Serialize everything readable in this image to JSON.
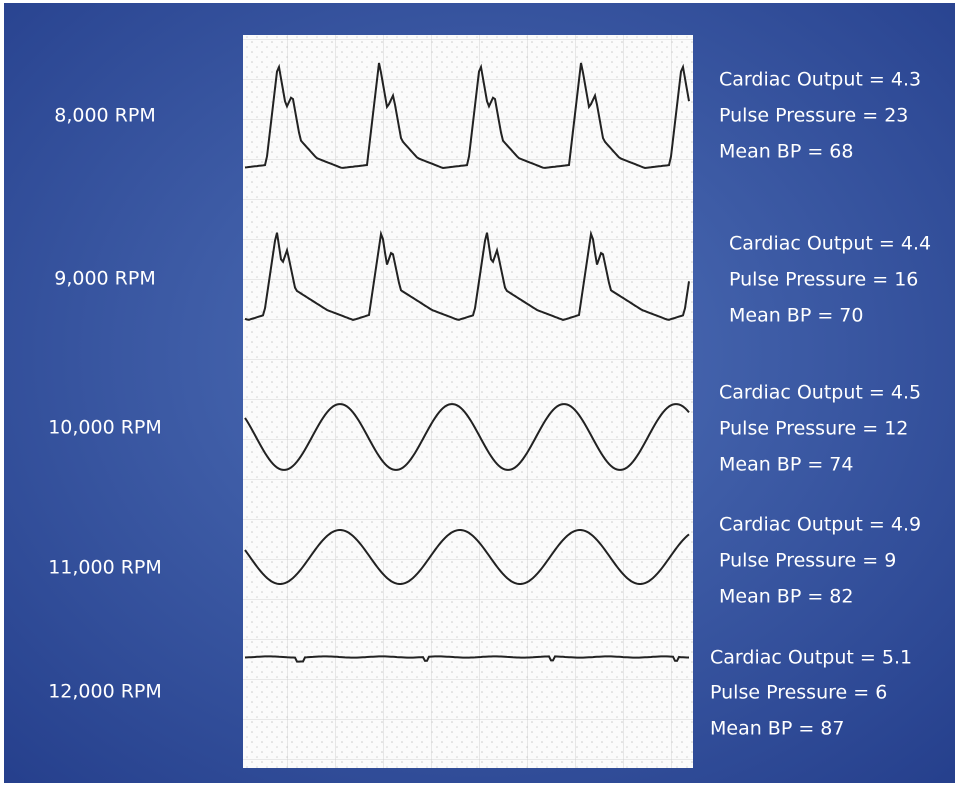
{
  "rows": [
    {
      "speed": "8,000 RPM",
      "lines": [
        "Cardiac Output = 4.3",
        "Pulse Pressure = 23",
        "Mean BP = 68"
      ]
    },
    {
      "speed": "9,000 RPM",
      "lines": [
        "Cardiac Output = 4.4",
        "Pulse Pressure = 16",
        "Mean BP = 70"
      ]
    },
    {
      "speed": "10,000 RPM",
      "lines": [
        "Cardiac Output = 4.5",
        "Pulse Pressure = 12",
        "Mean BP = 74"
      ]
    },
    {
      "speed": "11,000 RPM",
      "lines": [
        "Cardiac Output = 4.9",
        "Pulse Pressure = 9",
        "Mean BP = 82"
      ]
    },
    {
      "speed": "12,000 RPM",
      "lines": [
        "Cardiac Output = 5.1",
        "Pulse Pressure = 6",
        "Mean BP = 87"
      ]
    }
  ]
}
